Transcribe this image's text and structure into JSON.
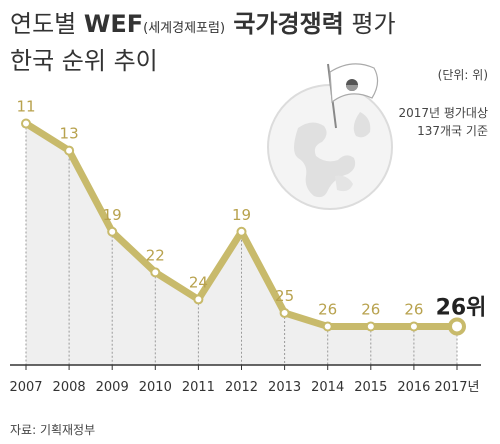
{
  "title": {
    "part1": "연도별 ",
    "wef": "WEF",
    "wef_full": "(세계경제포럼)",
    "part2": " 국가경쟁력",
    "part3": " 평가",
    "line2": "한국 순위 추이"
  },
  "unit": "(단위: 위)",
  "note_line1": "2017년 평가대상",
  "note_line2": "137개국 기준",
  "source": "자료: 기획재정부",
  "colors": {
    "line": "#c8ba6b",
    "label": "#b8a24e",
    "area": "#efefef",
    "dashed": "#9a9a9a",
    "axis": "#333333",
    "highlight": "#222222"
  },
  "chart_data": {
    "type": "line",
    "title": "",
    "xlabel": "",
    "ylabel": "",
    "x": [
      "2007",
      "2008",
      "2009",
      "2010",
      "2011",
      "2012",
      "2013",
      "2014",
      "2015",
      "2016",
      "2017년"
    ],
    "y": [
      11,
      13,
      19,
      22,
      24,
      19,
      25,
      26,
      26,
      26,
      26
    ],
    "data_labels": [
      "11",
      "13",
      "19",
      "22",
      "24",
      "19",
      "25",
      "26",
      "26",
      "26",
      "26위"
    ],
    "ylim": [
      10,
      27
    ],
    "y_inverted": true,
    "grid": false,
    "highlight_last": true
  }
}
